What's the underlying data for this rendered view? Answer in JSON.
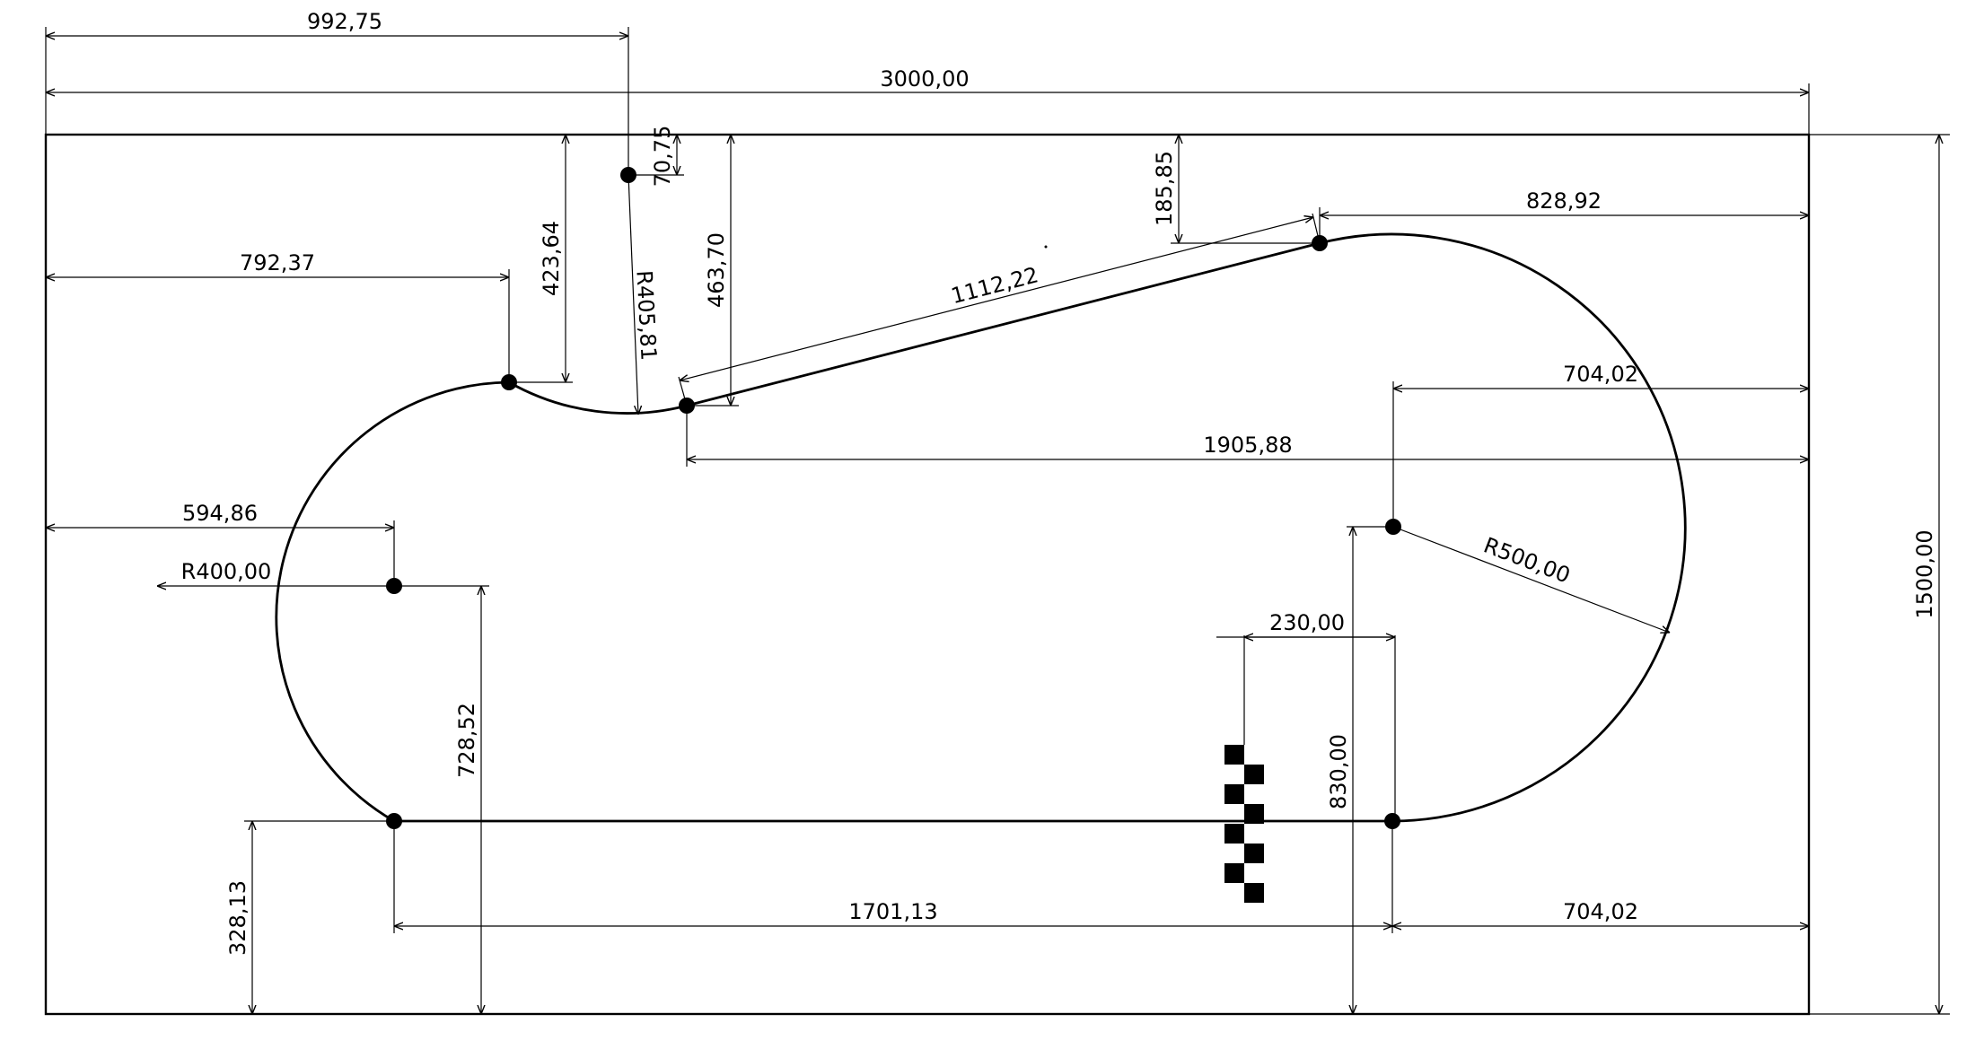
{
  "drawing": {
    "board": {
      "width_label": "3000,00",
      "height_label": "1500,00"
    },
    "dimensions": {
      "top_offset": "992,75",
      "top_small": "70,75",
      "left_upper": "792,37",
      "height_423": "423,64",
      "radius_mid": "R405,81",
      "height_463": "463,70",
      "height_185": "185,85",
      "straight_diag": "1112,22",
      "right_upper": "828,92",
      "right_mid": "704,02",
      "long_mid": "1905,88",
      "left_mid": "594,86",
      "radius_left": "R400,00",
      "radius_right": "R500,00",
      "finish_width": "230,00",
      "height_728": "728,52",
      "height_830": "830,00",
      "height_328": "328,13",
      "bottom_straight": "1701,13",
      "bottom_right": "704,02"
    }
  }
}
